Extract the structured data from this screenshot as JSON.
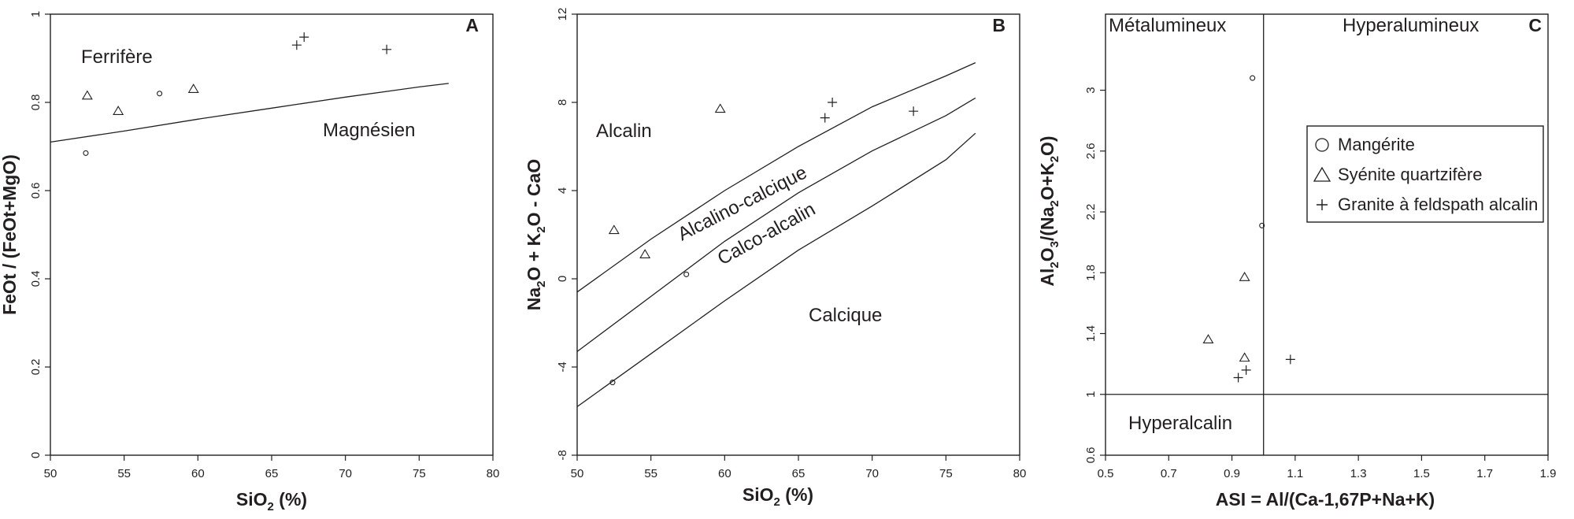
{
  "chart_data": [
    {
      "panel": "A",
      "type": "scatter",
      "xlabel": "SiO2 (%)",
      "ylabel": "FeOt / (FeOt+MgO)",
      "xlim": [
        50,
        80
      ],
      "ylim": [
        0,
        1
      ],
      "xticks": [
        50,
        55,
        60,
        65,
        70,
        75,
        80
      ],
      "yticks": [
        0,
        0.2,
        0.4,
        0.6,
        0.8,
        1
      ],
      "region_labels": [
        "Ferrifère",
        "Magnésien"
      ],
      "boundaries": [
        {
          "name": "",
          "points": [
            [
              50,
              0.71
            ],
            [
              55,
              0.735
            ],
            [
              60,
              0.762
            ],
            [
              65,
              0.787
            ],
            [
              70,
              0.812
            ],
            [
              75,
              0.835
            ],
            [
              77,
              0.843
            ]
          ]
        }
      ],
      "series": [
        {
          "name": "Mangérite",
          "marker": "circle",
          "points": [
            [
              52.4,
              0.685
            ],
            [
              57.4,
              0.82
            ]
          ]
        },
        {
          "name": "Syénite quartzifère",
          "marker": "triangle",
          "points": [
            [
              52.5,
              0.815
            ],
            [
              54.6,
              0.78
            ],
            [
              59.7,
              0.83
            ]
          ]
        },
        {
          "name": "Granite à feldspath alcalin",
          "marker": "plus",
          "points": [
            [
              66.7,
              0.93
            ],
            [
              67.2,
              0.948
            ],
            [
              72.8,
              0.92
            ]
          ]
        }
      ]
    },
    {
      "panel": "B",
      "type": "scatter",
      "xlabel": "SiO2 (%)",
      "ylabel": "Na2O + K2O - CaO",
      "xlim": [
        50,
        80
      ],
      "ylim": [
        -8,
        12
      ],
      "xticks": [
        50,
        55,
        60,
        65,
        70,
        75,
        80
      ],
      "yticks": [
        -8,
        -4,
        0,
        4,
        8,
        12
      ],
      "region_labels": [
        "Alcalin",
        "Alcalino-calcique",
        "Calco-alcalin",
        "Calcique"
      ],
      "boundaries": [
        {
          "name": "",
          "points": [
            [
              50,
              -0.6
            ],
            [
              55,
              1.8
            ],
            [
              60,
              4.0
            ],
            [
              65,
              6.0
            ],
            [
              70,
              7.8
            ],
            [
              75,
              9.2
            ],
            [
              77,
              9.8
            ]
          ]
        },
        {
          "name": "",
          "points": [
            [
              50,
              -3.3
            ],
            [
              55,
              -0.8
            ],
            [
              60,
              1.7
            ],
            [
              65,
              3.9
            ],
            [
              70,
              5.8
            ],
            [
              75,
              7.4
            ],
            [
              77,
              8.2
            ]
          ]
        },
        {
          "name": "",
          "points": [
            [
              50,
              -5.8
            ],
            [
              55,
              -3.4
            ],
            [
              60,
              -1.0
            ],
            [
              65,
              1.3
            ],
            [
              70,
              3.3
            ],
            [
              75,
              5.4
            ],
            [
              77,
              6.6
            ]
          ]
        }
      ],
      "series": [
        {
          "name": "Mangérite",
          "marker": "circle",
          "points": [
            [
              52.4,
              -4.7
            ],
            [
              57.4,
              0.2
            ]
          ]
        },
        {
          "name": "Syénite quartzifère",
          "marker": "triangle",
          "points": [
            [
              52.5,
              2.2
            ],
            [
              54.6,
              1.1
            ],
            [
              59.7,
              7.7
            ]
          ]
        },
        {
          "name": "Granite à feldspath alcalin",
          "marker": "plus",
          "points": [
            [
              66.8,
              7.3
            ],
            [
              67.3,
              8.0
            ],
            [
              72.8,
              7.6
            ]
          ]
        }
      ]
    },
    {
      "panel": "C",
      "type": "scatter",
      "xlabel": "ASI = Al/(Ca-1,67P+Na+K)",
      "ylabel": "Al2O3/(Na2O+K2O)",
      "xlim": [
        0.5,
        1.9
      ],
      "ylim": [
        0.6,
        3.5
      ],
      "xticks": [
        0.5,
        0.7,
        0.9,
        1.1,
        1.3,
        1.5,
        1.7,
        1.9
      ],
      "yticks": [
        0.6,
        1,
        1.4,
        1.8,
        2.2,
        2.6,
        3
      ],
      "region_labels": [
        "Métalumineux",
        "Hyperalumineux",
        "Hyperalcalin"
      ],
      "reference_lines": {
        "vertical_x": 1.0,
        "horizontal_y": 1.0
      },
      "series": [
        {
          "name": "Mangérite",
          "marker": "circle",
          "points": [
            [
              0.965,
              3.08
            ],
            [
              0.995,
              2.11
            ]
          ]
        },
        {
          "name": "Syénite quartzifère",
          "marker": "triangle",
          "points": [
            [
              0.94,
              1.77
            ],
            [
              0.825,
              1.36
            ],
            [
              0.94,
              1.24
            ]
          ]
        },
        {
          "name": "Granite à feldspath alcalin",
          "marker": "plus",
          "points": [
            [
              0.92,
              1.11
            ],
            [
              0.945,
              1.16
            ],
            [
              1.085,
              1.23
            ]
          ]
        }
      ],
      "legend": {
        "position": "right",
        "entries": [
          {
            "marker": "circle",
            "label": "Mangérite"
          },
          {
            "marker": "triangle",
            "label": "Syénite quartzifère"
          },
          {
            "marker": "plus",
            "label": "Granite à feldspath alcalin"
          }
        ]
      }
    }
  ]
}
